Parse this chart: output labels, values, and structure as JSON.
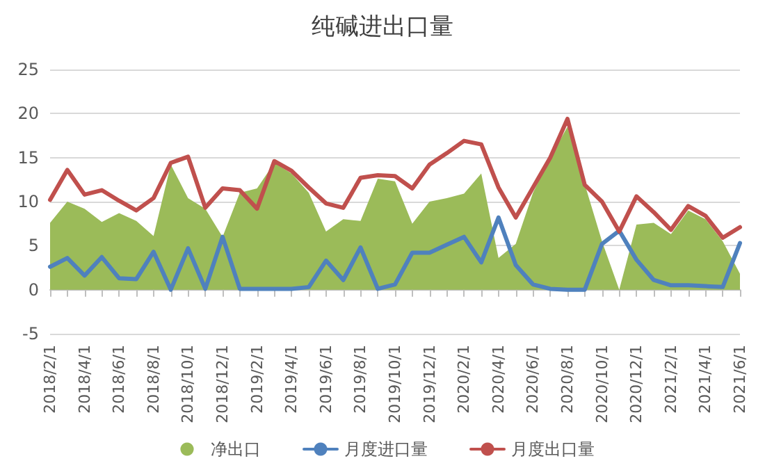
{
  "chart_data": {
    "type": "line",
    "title": "纯碱进出口量",
    "categories": [
      "2018/2/1",
      null,
      "2018/4/1",
      null,
      "2018/6/1",
      null,
      "2018/8/1",
      null,
      "2018/10/1",
      null,
      "2018/12/1",
      null,
      "2019/2/1",
      null,
      "2019/4/1",
      null,
      "2019/6/1",
      null,
      "2019/8/1",
      null,
      "2019/10/1",
      null,
      "2019/12/1",
      null,
      "2020/2/1",
      null,
      "2020/4/1",
      null,
      "2020/6/1",
      null,
      "2020/8/1",
      null,
      "2020/10/1",
      null,
      "2020/12/1",
      null,
      "2021/2/1",
      null,
      "2021/4/1",
      null,
      "2021/6/1"
    ],
    "series": [
      {
        "name": "净出口",
        "type": "area",
        "color": "#9bbb59",
        "values": [
          7.6,
          10.0,
          9.2,
          7.7,
          8.7,
          7.8,
          6.1,
          14.2,
          10.4,
          9.2,
          6.0,
          11.0,
          11.5,
          14.4,
          13.2,
          11.0,
          6.6,
          8.0,
          7.8,
          12.6,
          12.3,
          7.5,
          10.0,
          10.4,
          10.9,
          13.2,
          3.6,
          5.2,
          11.0,
          15.0,
          18.5,
          12.0,
          5.5,
          0,
          7.4,
          7.6,
          6.3,
          9.0,
          8.0,
          5.5,
          1.8
        ]
      },
      {
        "name": "月度进口量",
        "color": "#4f81bd",
        "values": [
          2.6,
          3.6,
          1.6,
          3.7,
          1.3,
          1.2,
          4.3,
          0,
          4.7,
          0.1,
          6.0,
          0.1,
          0.1,
          0.1,
          0.1,
          0.3,
          3.3,
          1.1,
          4.8,
          0.1,
          0.6,
          4.2,
          4.2,
          5.1,
          6.0,
          3.1,
          8.2,
          2.8,
          0.6,
          0.1,
          0,
          0,
          5.2,
          6.7,
          3.4,
          1.1,
          0.5,
          0.5,
          0.4,
          0.3,
          5.3
        ]
      },
      {
        "name": "月度出口量",
        "color": "#c0504d",
        "values": [
          10.2,
          13.6,
          10.8,
          11.3,
          10.1,
          9.0,
          10.4,
          14.4,
          15.1,
          9.3,
          11.5,
          11.3,
          9.2,
          14.6,
          13.5,
          11.6,
          9.8,
          9.3,
          12.7,
          13.0,
          12.9,
          11.5,
          14.2,
          15.5,
          16.9,
          16.5,
          11.6,
          8.2,
          11.6,
          15.0,
          19.4,
          11.9,
          10.0,
          6.6,
          10.6,
          8.8,
          6.8,
          9.5,
          8.4,
          5.9,
          7.1
        ]
      }
    ],
    "ylim": [
      -5,
      25
    ],
    "yticks": [
      -5,
      0,
      5,
      10,
      15,
      20,
      25
    ],
    "grid": "y",
    "legend": "bottom",
    "marker": "none",
    "line_style": "solid"
  }
}
